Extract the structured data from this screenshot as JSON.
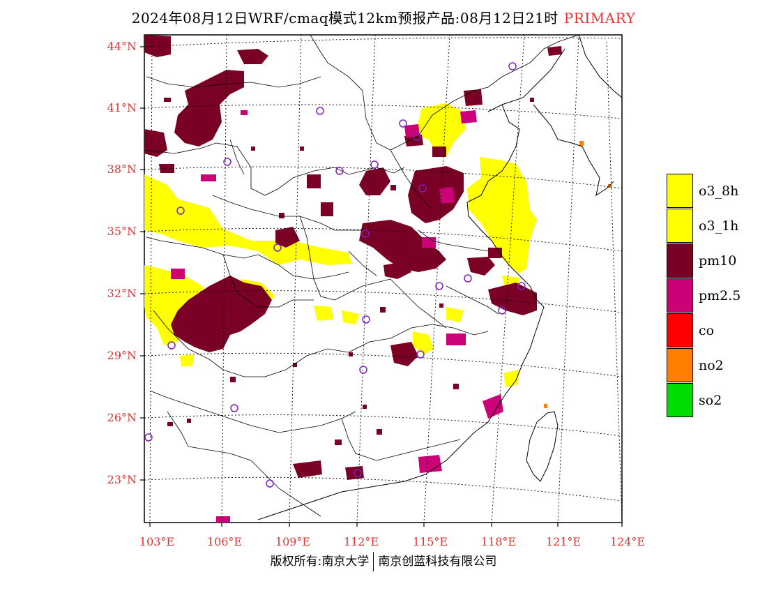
{
  "title": {
    "main": "2024年08月12日WRF/cmaq模式12km预报产品:08月12日21时",
    "tag": "PRIMARY"
  },
  "lat_labels": [
    "44°N",
    "41°N",
    "38°N",
    "35°N",
    "32°N",
    "29°N",
    "26°N",
    "23°N"
  ],
  "lon_labels": [
    "103°E",
    "106°E",
    "109°E",
    "112°E",
    "115°E",
    "118°E",
    "121°E",
    "124°E"
  ],
  "legend": [
    {
      "label": "o3_8h",
      "color": "#ffff00"
    },
    {
      "label": "o3_1h",
      "color": "#ffff00"
    },
    {
      "label": "pm10",
      "color": "#7a0026"
    },
    {
      "label": "pm2.5",
      "color": "#cc0077"
    },
    {
      "label": "co",
      "color": "#ff0000"
    },
    {
      "label": "no2",
      "color": "#ff7f00"
    },
    {
      "label": "so2",
      "color": "#00dd00"
    }
  ],
  "footer": {
    "left": "版权所有:南京大学",
    "right": "南京创蓝科技有限公司"
  }
}
